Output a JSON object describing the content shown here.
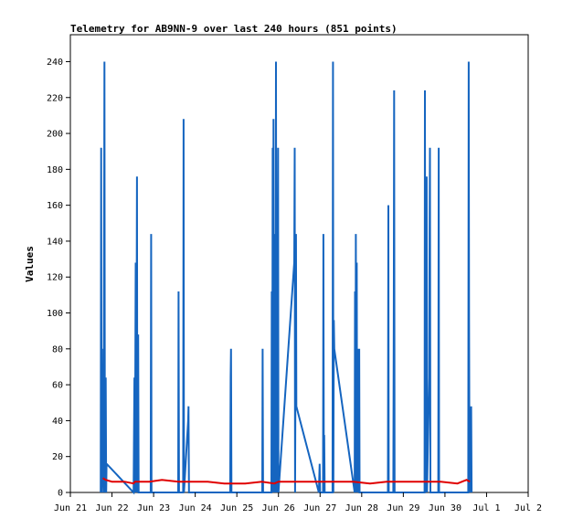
{
  "chart_data": {
    "type": "line",
    "title": "Telemetry for AB9NN-9 over last 240 hours (851 points)",
    "xlabel": "",
    "ylabel": "Values",
    "ylim": [
      0,
      255
    ],
    "xlim": [
      0,
      11
    ],
    "yticks": [
      0,
      20,
      40,
      60,
      80,
      100,
      120,
      140,
      160,
      180,
      200,
      220,
      240
    ],
    "xticks": [
      {
        "x": 0,
        "label": "Jun 21"
      },
      {
        "x": 1,
        "label": "Jun 22"
      },
      {
        "x": 2,
        "label": "Jun 23"
      },
      {
        "x": 3,
        "label": "Jun 24"
      },
      {
        "x": 4,
        "label": "Jun 25"
      },
      {
        "x": 5,
        "label": "Jun 26"
      },
      {
        "x": 6,
        "label": "Jun 27"
      },
      {
        "x": 7,
        "label": "Jun 28"
      },
      {
        "x": 8,
        "label": "Jun 29"
      },
      {
        "x": 9,
        "label": "Jun 30"
      },
      {
        "x": 10,
        "label": "Jul 1"
      },
      {
        "x": 11,
        "label": "Jul 2"
      }
    ],
    "grid": false,
    "series": [
      {
        "color": "#1565c0",
        "points": [
          [
            0.73,
            0
          ],
          [
            0.74,
            192
          ],
          [
            0.75,
            0
          ],
          [
            0.76,
            80
          ],
          [
            0.77,
            10
          ],
          [
            0.78,
            16
          ],
          [
            0.8,
            0
          ],
          [
            0.82,
            240
          ],
          [
            0.83,
            0
          ],
          [
            0.85,
            64
          ],
          [
            0.86,
            0
          ],
          [
            0.87,
            16
          ],
          [
            1.52,
            0
          ],
          [
            1.54,
            64
          ],
          [
            1.55,
            0
          ],
          [
            1.57,
            128
          ],
          [
            1.58,
            0
          ],
          [
            1.6,
            176
          ],
          [
            1.61,
            0
          ],
          [
            1.63,
            88
          ],
          [
            1.64,
            0
          ],
          [
            1.93,
            0
          ],
          [
            1.94,
            144
          ],
          [
            1.95,
            0
          ],
          [
            2.59,
            0
          ],
          [
            2.6,
            112
          ],
          [
            2.61,
            0
          ],
          [
            2.71,
            0
          ],
          [
            2.72,
            208
          ],
          [
            2.73,
            0
          ],
          [
            2.83,
            40
          ],
          [
            2.84,
            48
          ],
          [
            2.85,
            0
          ],
          [
            3.84,
            0
          ],
          [
            3.85,
            64
          ],
          [
            3.86,
            80
          ],
          [
            3.87,
            0
          ],
          [
            4.61,
            0
          ],
          [
            4.62,
            80
          ],
          [
            4.63,
            0
          ],
          [
            4.83,
            0
          ],
          [
            4.84,
            112
          ],
          [
            4.85,
            0
          ],
          [
            4.86,
            192
          ],
          [
            4.87,
            0
          ],
          [
            4.88,
            208
          ],
          [
            4.89,
            0
          ],
          [
            4.9,
            128
          ],
          [
            4.91,
            0
          ],
          [
            4.92,
            144
          ],
          [
            4.93,
            0
          ],
          [
            4.94,
            240
          ],
          [
            4.95,
            0
          ],
          [
            4.96,
            64
          ],
          [
            4.97,
            0
          ],
          [
            4.99,
            192
          ],
          [
            5.0,
            0
          ],
          [
            5.38,
            128
          ],
          [
            5.39,
            192
          ],
          [
            5.4,
            0
          ],
          [
            5.42,
            144
          ],
          [
            5.43,
            48
          ],
          [
            5.97,
            0
          ],
          [
            5.99,
            16
          ],
          [
            6.0,
            0
          ],
          [
            6.07,
            0
          ],
          [
            6.08,
            144
          ],
          [
            6.09,
            0
          ],
          [
            6.1,
            32
          ],
          [
            6.11,
            0
          ],
          [
            6.3,
            0
          ],
          [
            6.31,
            240
          ],
          [
            6.32,
            0
          ],
          [
            6.33,
            96
          ],
          [
            6.34,
            80
          ],
          [
            6.83,
            0
          ],
          [
            6.84,
            112
          ],
          [
            6.85,
            0
          ],
          [
            6.86,
            144
          ],
          [
            6.87,
            0
          ],
          [
            6.88,
            128
          ],
          [
            6.89,
            0
          ],
          [
            6.9,
            80
          ],
          [
            6.91,
            0
          ],
          [
            6.93,
            48
          ],
          [
            6.94,
            80
          ],
          [
            6.95,
            0
          ],
          [
            7.63,
            0
          ],
          [
            7.64,
            160
          ],
          [
            7.65,
            0
          ],
          [
            7.76,
            0
          ],
          [
            7.77,
            96
          ],
          [
            7.78,
            224
          ],
          [
            7.79,
            0
          ],
          [
            8.51,
            0
          ],
          [
            8.52,
            224
          ],
          [
            8.53,
            0
          ],
          [
            8.56,
            176
          ],
          [
            8.57,
            0
          ],
          [
            8.62,
            64
          ],
          [
            8.63,
            144
          ],
          [
            8.64,
            192
          ],
          [
            8.65,
            0
          ],
          [
            8.84,
            0
          ],
          [
            8.85,
            192
          ],
          [
            8.86,
            0
          ],
          [
            9.56,
            0
          ],
          [
            9.57,
            240
          ],
          [
            9.58,
            96
          ],
          [
            9.59,
            0
          ],
          [
            9.6,
            32
          ],
          [
            9.61,
            0
          ],
          [
            9.63,
            48
          ],
          [
            9.64,
            0
          ]
        ]
      },
      {
        "color": "#e00000",
        "points": [
          [
            0.78,
            8
          ],
          [
            0.85,
            7
          ],
          [
            1.0,
            6
          ],
          [
            1.3,
            6
          ],
          [
            1.52,
            5
          ],
          [
            1.55,
            6
          ],
          [
            1.9,
            6
          ],
          [
            2.2,
            7
          ],
          [
            2.6,
            6
          ],
          [
            2.9,
            6
          ],
          [
            3.3,
            6
          ],
          [
            3.7,
            5
          ],
          [
            4.2,
            5
          ],
          [
            4.6,
            6
          ],
          [
            4.9,
            5
          ],
          [
            5.0,
            6
          ],
          [
            5.4,
            6
          ],
          [
            5.9,
            6
          ],
          [
            6.3,
            6
          ],
          [
            6.8,
            6
          ],
          [
            7.2,
            5
          ],
          [
            7.6,
            6
          ],
          [
            8.0,
            6
          ],
          [
            8.5,
            6
          ],
          [
            8.9,
            6
          ],
          [
            9.3,
            5
          ],
          [
            9.52,
            7
          ],
          [
            9.6,
            6
          ]
        ]
      }
    ]
  }
}
